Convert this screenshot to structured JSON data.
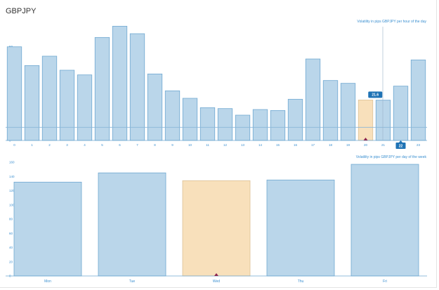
{
  "page": {
    "title": "GBPJPY"
  },
  "colors": {
    "bar_fill": "#bad6ea",
    "bar_stroke": "#6fa8d1",
    "highlight_fill": "#f8e0bb",
    "highlight_stroke": "#dcc298",
    "label_color": "#3a8fd0",
    "marker_bg": "#1f73b5",
    "marker_arrow": "#8b2450",
    "avg_line": "#8ab6d8"
  },
  "chart_data": [
    {
      "type": "bar",
      "title": "Volatility in pips GBPJPY per hour of the day",
      "categories": [
        "0",
        "1",
        "2",
        "3",
        "4",
        "5",
        "6",
        "7",
        "8",
        "9",
        "10",
        "11",
        "12",
        "13",
        "14",
        "15",
        "16",
        "17",
        "18",
        "19",
        "20",
        "21",
        "22",
        "23"
      ],
      "values": [
        50,
        40,
        45,
        37.5,
        35,
        55,
        61,
        57,
        35.5,
        26.5,
        22.5,
        17.5,
        17,
        13.5,
        16.5,
        16,
        22,
        43.5,
        32,
        30.5,
        21.6,
        21.5,
        29,
        43
      ],
      "highlight_index": 20,
      "current_hour": "22",
      "value_label": "21.6",
      "avg_line": 7,
      "yticks": [
        0,
        10,
        20,
        30,
        40,
        50
      ],
      "ylim": [
        0,
        60
      ],
      "xlabel": "",
      "ylabel": "",
      "grid": false
    },
    {
      "type": "bar",
      "title": "Volatility in pips GBPJPY per day of the week",
      "categories": [
        "Mon",
        "Tue",
        "Wed",
        "Thu",
        "Fri"
      ],
      "values": [
        132,
        145,
        134,
        135,
        157
      ],
      "highlight_index": 2,
      "yticks": [
        0,
        20,
        40,
        60,
        80,
        100,
        120,
        140,
        160
      ],
      "ylim": [
        0,
        160
      ],
      "xlabel": "",
      "ylabel": "",
      "grid": false
    }
  ]
}
